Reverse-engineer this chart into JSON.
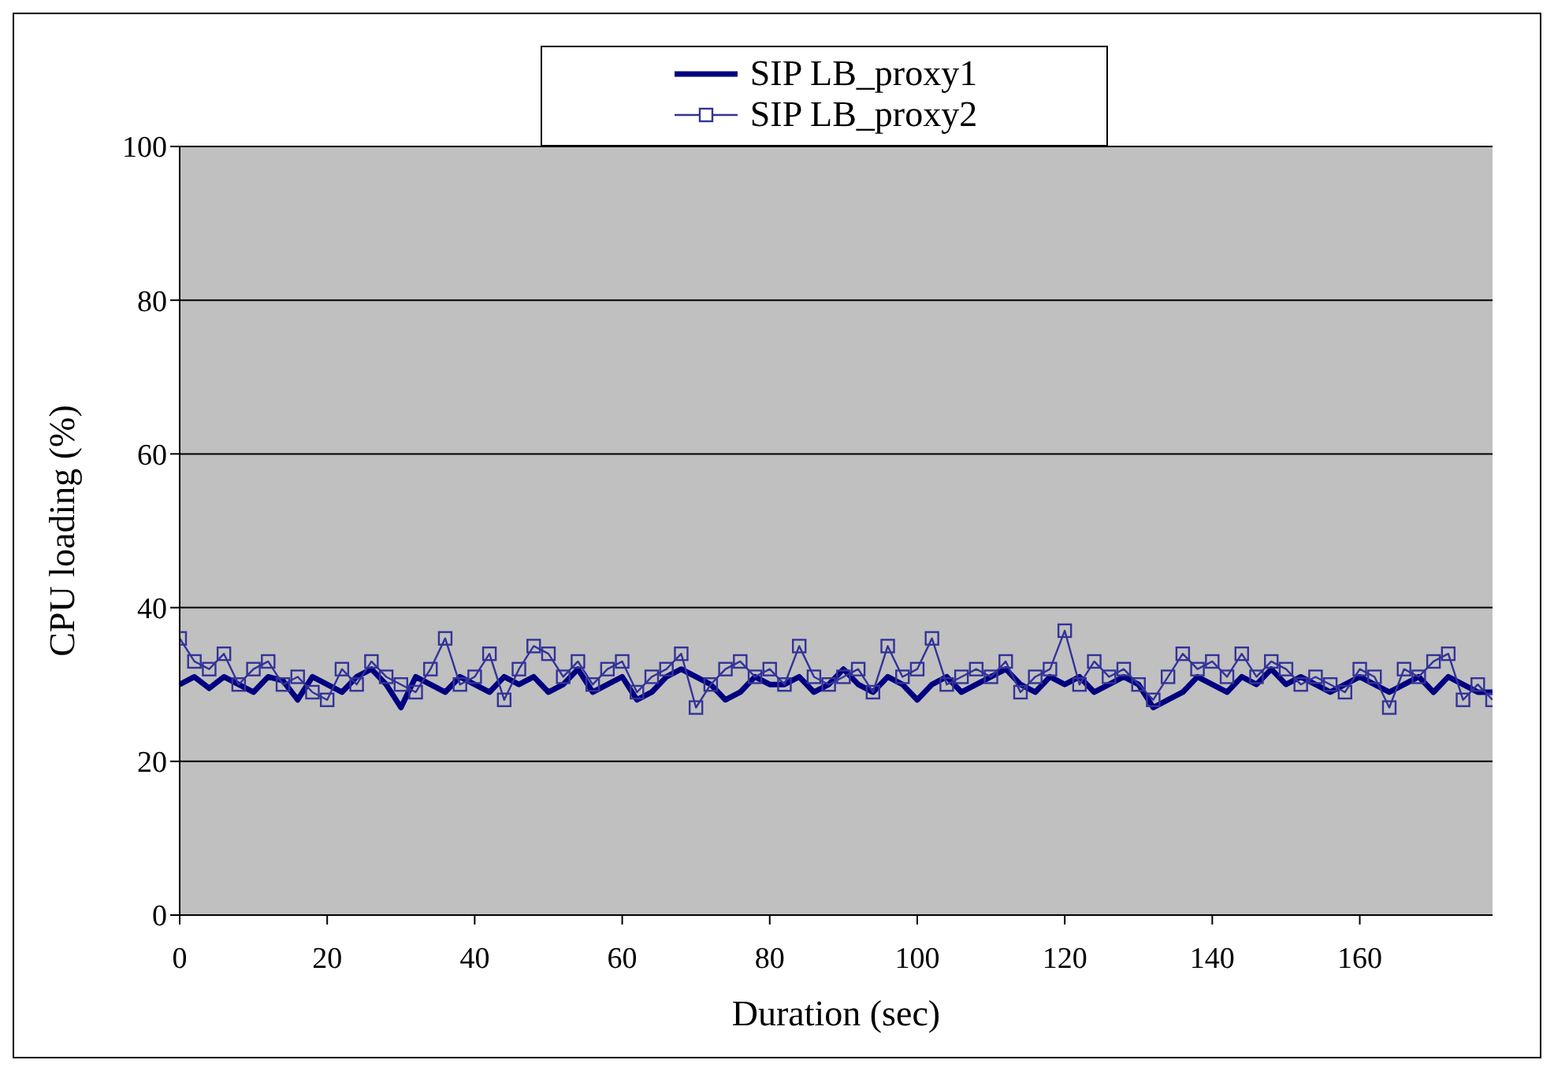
{
  "chart_data": {
    "type": "line",
    "xlabel": "Duration (sec)",
    "ylabel": "CPU loading (%)",
    "xlim": [
      0,
      178
    ],
    "xticks": [
      0,
      20,
      40,
      60,
      80,
      100,
      120,
      140,
      160
    ],
    "ylim": [
      0,
      100
    ],
    "yticks": [
      0,
      20,
      40,
      60,
      80,
      100
    ],
    "grid": "y",
    "legend": "top",
    "x": [
      0,
      2,
      4,
      6,
      8,
      10,
      12,
      14,
      16,
      18,
      20,
      22,
      24,
      26,
      28,
      30,
      32,
      34,
      36,
      38,
      40,
      42,
      44,
      46,
      48,
      50,
      52,
      54,
      56,
      58,
      60,
      62,
      64,
      66,
      68,
      70,
      72,
      74,
      76,
      78,
      80,
      82,
      84,
      86,
      88,
      90,
      92,
      94,
      96,
      98,
      100,
      102,
      104,
      106,
      108,
      110,
      112,
      114,
      116,
      118,
      120,
      122,
      124,
      126,
      128,
      130,
      132,
      134,
      136,
      138,
      140,
      142,
      144,
      146,
      148,
      150,
      152,
      154,
      156,
      158,
      160,
      162,
      164,
      166,
      168,
      170,
      172,
      174,
      176,
      178
    ],
    "series": [
      {
        "name": "SIP LB_proxy1",
        "color": "#000080",
        "marker": "none",
        "line_style": "solid",
        "values": [
          30,
          31,
          29.5,
          31,
          30,
          29,
          31,
          30.5,
          28,
          31,
          30,
          29,
          31,
          32,
          30,
          27,
          31,
          30,
          29,
          31,
          30,
          29,
          31,
          30,
          31,
          29,
          30,
          32,
          29,
          30,
          31,
          28,
          29,
          31,
          32,
          31,
          30,
          28,
          29,
          31,
          30,
          30,
          31,
          29,
          30,
          32,
          30,
          29,
          31,
          30,
          28,
          30,
          31,
          29,
          30,
          31,
          32,
          30,
          29,
          31,
          30,
          31,
          29,
          30,
          31,
          30,
          27,
          28,
          29,
          31,
          30,
          29,
          31,
          30,
          32,
          30,
          31,
          30,
          29,
          30,
          31,
          30,
          29,
          30,
          31,
          29,
          31,
          30,
          29,
          29
        ]
      },
      {
        "name": "SIP LB_proxy2",
        "color": "#333399",
        "marker": "square",
        "line_style": "solid",
        "values": [
          36,
          33,
          32,
          34,
          30,
          32,
          33,
          30,
          31,
          29,
          28,
          32,
          30,
          33,
          31,
          30,
          29,
          32,
          36,
          30,
          31,
          34,
          28,
          32,
          35,
          34,
          31,
          33,
          30,
          32,
          33,
          29,
          31,
          32,
          34,
          27,
          30,
          32,
          33,
          31,
          32,
          30,
          35,
          31,
          30,
          31,
          32,
          29,
          35,
          31,
          32,
          36,
          30,
          31,
          32,
          31,
          33,
          29,
          31,
          32,
          37,
          30,
          33,
          31,
          32,
          30,
          28,
          31,
          34,
          32,
          33,
          31,
          34,
          31,
          33,
          32,
          30,
          31,
          30,
          29,
          32,
          31,
          27,
          32,
          31,
          33,
          34,
          28,
          30,
          28
        ]
      }
    ]
  }
}
